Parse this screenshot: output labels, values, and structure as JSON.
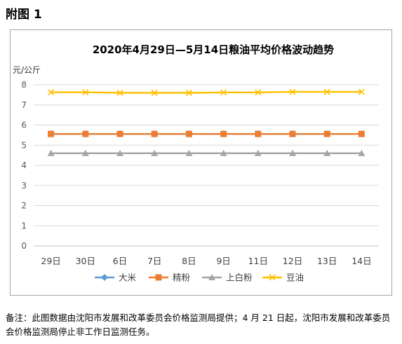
{
  "page": {
    "heading": "附图 1"
  },
  "note": "备注：此图数据由沈阳市发展和改革委员会价格监测局提供；4 月 21 日起，沈阳市发展和改革委员会价格监测局停止非工作日监测任务。",
  "chart_data": {
    "type": "line",
    "title": "2020年4月29日—5月14日粮油平均价格波动趋势",
    "ylabel": "元/公斤",
    "xlabel": "",
    "categories": [
      "29日",
      "30日",
      "6日",
      "7日",
      "8日",
      "9日",
      "11日",
      "12日",
      "13日",
      "14日"
    ],
    "ylim": [
      0,
      8
    ],
    "yticks": [
      0,
      1,
      2,
      3,
      4,
      5,
      6,
      7,
      8
    ],
    "grid": true,
    "legend_position": "bottom",
    "series": [
      {
        "name": "大米",
        "marker": "diamond",
        "color": "#5b9bd5",
        "values": [
          5.56,
          5.56,
          5.56,
          5.56,
          5.56,
          5.56,
          5.56,
          5.56,
          5.56,
          5.56
        ]
      },
      {
        "name": "精粉",
        "marker": "square",
        "color": "#ed7d31",
        "values": [
          5.56,
          5.56,
          5.56,
          5.56,
          5.56,
          5.56,
          5.56,
          5.56,
          5.56,
          5.56
        ]
      },
      {
        "name": "上白粉",
        "marker": "triangle",
        "color": "#a5a5a5",
        "values": [
          4.6,
          4.6,
          4.6,
          4.6,
          4.6,
          4.6,
          4.6,
          4.6,
          4.6,
          4.6
        ]
      },
      {
        "name": "豆油",
        "marker": "x",
        "color": "#ffc000",
        "values": [
          7.63,
          7.63,
          7.6,
          7.6,
          7.6,
          7.62,
          7.62,
          7.65,
          7.65,
          7.65
        ]
      }
    ]
  }
}
